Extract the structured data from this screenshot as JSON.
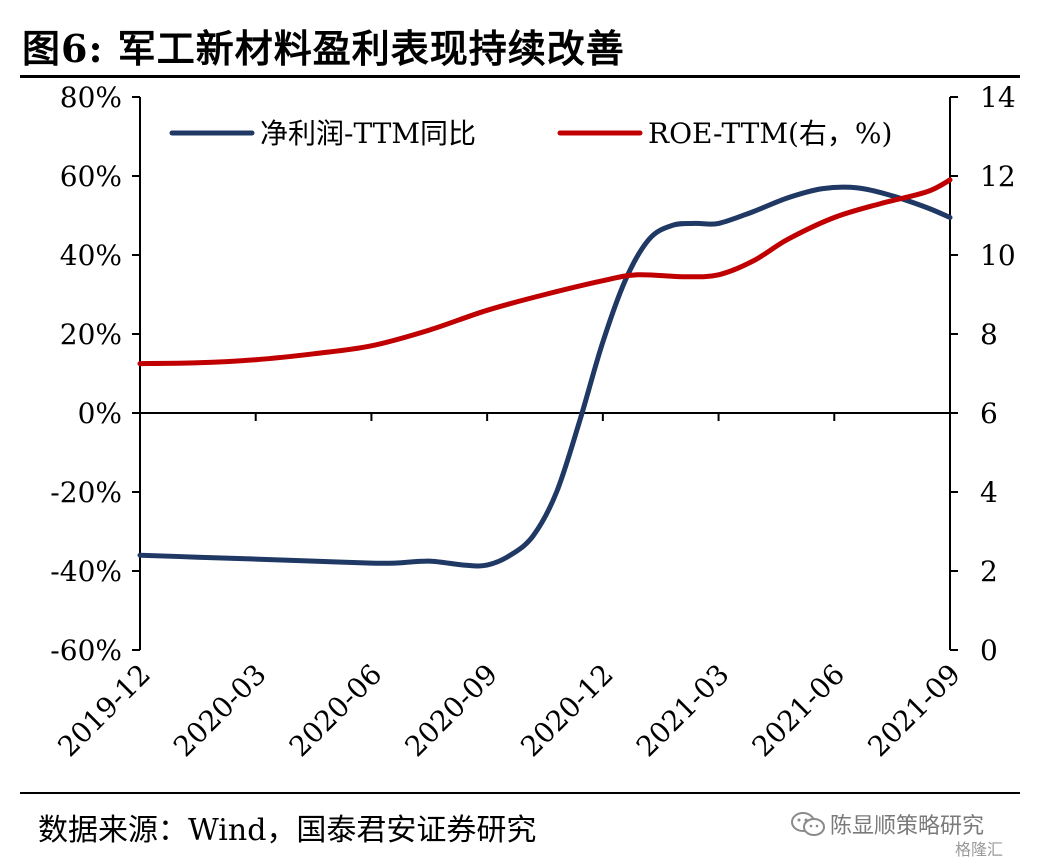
{
  "title": "图6: 军工新材料盈利表现持续改善",
  "source": "数据来源：Wind，国泰君安证券研究",
  "watermark": {
    "text": "陈显顺策略研究",
    "icon": "wechat-icon",
    "badge": "格隆汇"
  },
  "chart_data": {
    "type": "line",
    "x_ticks": [
      "2019-12",
      "2020-03",
      "2020-06",
      "2020-09",
      "2020-12",
      "2021-03",
      "2021-06",
      "2021-09"
    ],
    "left_axis": {
      "ylim": [
        -60,
        80
      ],
      "ticks": [
        "-60%",
        "-40%",
        "-20%",
        "0%",
        "20%",
        "40%",
        "60%",
        "80%"
      ],
      "tick_values": [
        -60,
        -40,
        -20,
        0,
        20,
        40,
        60,
        80
      ]
    },
    "right_axis": {
      "ylim": [
        0,
        14
      ],
      "ticks": [
        "0",
        "2",
        "4",
        "6",
        "8",
        "10",
        "12",
        "14"
      ],
      "tick_values": [
        0,
        2,
        4,
        6,
        8,
        10,
        12,
        14
      ]
    },
    "legend_position": "top",
    "series": [
      {
        "name": "净利润-TTM同比",
        "axis": "left",
        "color": "#1f3864",
        "x": [
          0,
          0.5,
          1,
          1.5,
          2,
          2.2,
          2.5,
          2.8,
          3,
          3.2,
          3.4,
          3.6,
          3.8,
          4,
          4.2,
          4.4,
          4.6,
          4.8,
          5,
          5.3,
          5.6,
          5.9,
          6.2,
          6.5,
          6.8,
          7
        ],
        "y": [
          -36,
          -36.5,
          -37,
          -37.5,
          -38,
          -38,
          -37.5,
          -38.5,
          -38.5,
          -36,
          -31,
          -20,
          -2,
          18,
          34,
          44,
          47.5,
          48,
          48,
          51,
          54.5,
          56.8,
          57,
          55,
          52,
          49.5
        ]
      },
      {
        "name": "ROE-TTM(右，%)",
        "axis": "right",
        "color": "#c00000",
        "x": [
          0,
          0.5,
          1,
          1.5,
          2,
          2.5,
          3,
          3.5,
          4,
          4.3,
          4.7,
          5,
          5.3,
          5.6,
          6,
          6.4,
          6.8,
          7
        ],
        "y": [
          7.25,
          7.27,
          7.35,
          7.5,
          7.7,
          8.1,
          8.6,
          9.0,
          9.35,
          9.5,
          9.45,
          9.5,
          9.85,
          10.4,
          10.95,
          11.3,
          11.6,
          11.9
        ]
      }
    ]
  }
}
